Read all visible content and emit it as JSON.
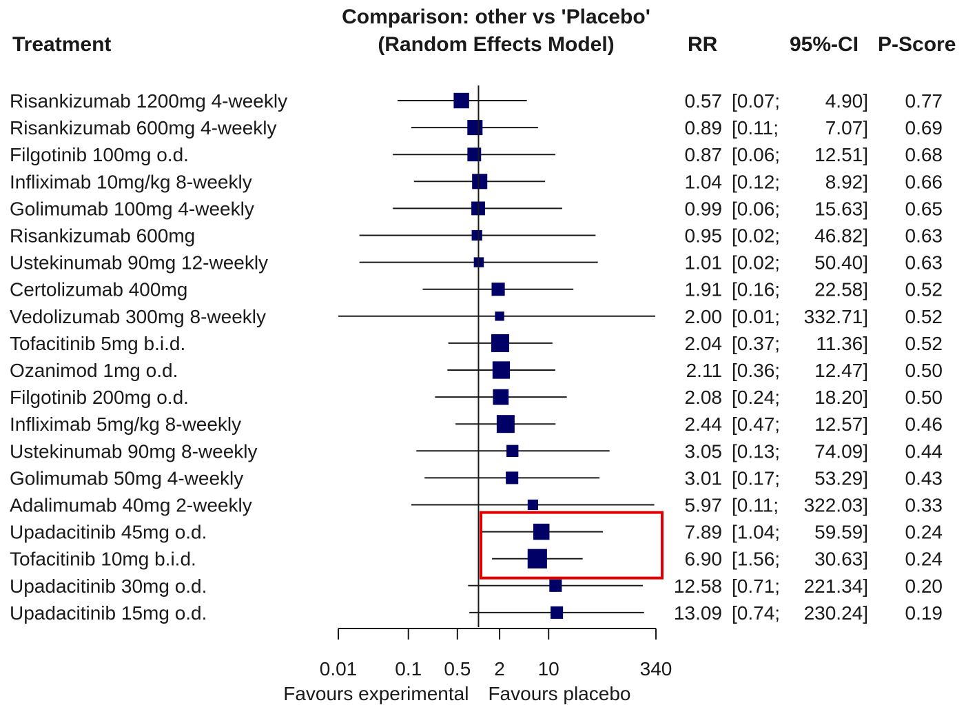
{
  "headers": {
    "treatment": "Treatment",
    "comparison_line1": "Comparison: other vs 'Placebo'",
    "comparison_line2": "(Random Effects Model)",
    "rr": "RR",
    "ci": "95%-CI",
    "pscore": "P-Score"
  },
  "colors": {
    "marker": "#000066",
    "line": "#1a1a1a",
    "highlight": "#e00000"
  },
  "chart_data": {
    "type": "forest",
    "xscale": "log",
    "xlim": [
      0.01,
      340
    ],
    "reference_line": 1,
    "ticks": [
      0.01,
      0.1,
      0.5,
      2,
      10,
      340
    ],
    "tick_labels": [
      "0.01",
      "0.1",
      "0.5",
      "2",
      "10",
      "340"
    ],
    "xlabel_left": "Favours experimental",
    "xlabel_right": "Favours placebo",
    "rows": [
      {
        "treatment": "Risankizumab 1200mg 4-weekly",
        "rr": 0.57,
        "lo": 0.07,
        "hi": 4.9,
        "rr_text": "0.57",
        "ci_lo_text": "[0.07;",
        "ci_hi_text": "4.90]",
        "pscore": "0.77",
        "weight": 0.8
      },
      {
        "treatment": "Risankizumab 600mg 4-weekly",
        "rr": 0.89,
        "lo": 0.11,
        "hi": 7.07,
        "rr_text": "0.89",
        "ci_lo_text": "[0.11;",
        "ci_hi_text": "7.07]",
        "pscore": "0.69",
        "weight": 0.78
      },
      {
        "treatment": "Filgotinib 100mg o.d.",
        "rr": 0.87,
        "lo": 0.06,
        "hi": 12.51,
        "rr_text": "0.87",
        "ci_lo_text": "[0.06;",
        "ci_hi_text": "12.51]",
        "pscore": "0.68",
        "weight": 0.66
      },
      {
        "treatment": "Infliximab 10mg/kg 8-weekly",
        "rr": 1.04,
        "lo": 0.12,
        "hi": 8.92,
        "rr_text": "1.04",
        "ci_lo_text": "[0.12;",
        "ci_hi_text": "8.92]",
        "pscore": "0.66",
        "weight": 0.78
      },
      {
        "treatment": "Golimumab 100mg 4-weekly",
        "rr": 0.99,
        "lo": 0.06,
        "hi": 15.63,
        "rr_text": "0.99",
        "ci_lo_text": "[0.06;",
        "ci_hi_text": "15.63]",
        "pscore": "0.65",
        "weight": 0.66
      },
      {
        "treatment": "Risankizumab 600mg",
        "rr": 0.95,
        "lo": 0.02,
        "hi": 46.82,
        "rr_text": "0.95",
        "ci_lo_text": "[0.02;",
        "ci_hi_text": "46.82]",
        "pscore": "0.63",
        "weight": 0.4
      },
      {
        "treatment": "Ustekinumab 90mg 12-weekly",
        "rr": 1.01,
        "lo": 0.02,
        "hi": 50.4,
        "rr_text": "1.01",
        "ci_lo_text": "[0.02;",
        "ci_hi_text": "50.40]",
        "pscore": "0.63",
        "weight": 0.36
      },
      {
        "treatment": "Certolizumab 400mg",
        "rr": 1.91,
        "lo": 0.16,
        "hi": 22.58,
        "rr_text": "1.91",
        "ci_lo_text": "[0.16;",
        "ci_hi_text": "22.58]",
        "pscore": "0.52",
        "weight": 0.62
      },
      {
        "treatment": "Vedolizumab 300mg 8-weekly",
        "rr": 2.0,
        "lo": 0.01,
        "hi": 332.71,
        "rr_text": "2.00",
        "ci_lo_text": "[0.01;",
        "ci_hi_text": "332.71]",
        "pscore": "0.52",
        "weight": 0.3
      },
      {
        "treatment": "Tofacitinib 5mg b.i.d.",
        "rr": 2.04,
        "lo": 0.37,
        "hi": 11.36,
        "rr_text": "2.04",
        "ci_lo_text": "[0.37;",
        "ci_hi_text": "11.36]",
        "pscore": "0.52",
        "weight": 1.0
      },
      {
        "treatment": "Ozanimod 1mg o.d.",
        "rr": 2.11,
        "lo": 0.36,
        "hi": 12.47,
        "rr_text": "2.11",
        "ci_lo_text": "[0.36;",
        "ci_hi_text": "12.47]",
        "pscore": "0.50",
        "weight": 0.96
      },
      {
        "treatment": "Filgotinib 200mg o.d.",
        "rr": 2.08,
        "lo": 0.24,
        "hi": 18.2,
        "rr_text": "2.08",
        "ci_lo_text": "[0.24;",
        "ci_hi_text": "18.20]",
        "pscore": "0.50",
        "weight": 0.82
      },
      {
        "treatment": "Infliximab 5mg/kg 8-weekly",
        "rr": 2.44,
        "lo": 0.47,
        "hi": 12.57,
        "rr_text": "2.44",
        "ci_lo_text": "[0.47;",
        "ci_hi_text": "12.57]",
        "pscore": "0.46",
        "weight": 1.0
      },
      {
        "treatment": "Ustekinumab 90mg 8-weekly",
        "rr": 3.05,
        "lo": 0.13,
        "hi": 74.09,
        "rr_text": "3.05",
        "ci_lo_text": "[0.13;",
        "ci_hi_text": "74.09]",
        "pscore": "0.44",
        "weight": 0.52
      },
      {
        "treatment": "Golimumab 50mg 4-weekly",
        "rr": 3.01,
        "lo": 0.17,
        "hi": 53.29,
        "rr_text": "3.01",
        "ci_lo_text": "[0.17;",
        "ci_hi_text": "53.29]",
        "pscore": "0.43",
        "weight": 0.56
      },
      {
        "treatment": "Adalimumab 40mg 2-weekly",
        "rr": 5.97,
        "lo": 0.11,
        "hi": 322.03,
        "rr_text": "5.97",
        "ci_lo_text": "[0.11;",
        "ci_hi_text": "322.03]",
        "pscore": "0.33",
        "weight": 0.4
      },
      {
        "treatment": "Upadacitinib 45mg o.d.",
        "rr": 7.89,
        "lo": 1.04,
        "hi": 59.59,
        "rr_text": "7.89",
        "ci_lo_text": "[1.04;",
        "ci_hi_text": "59.59]",
        "pscore": "0.24",
        "weight": 0.86
      },
      {
        "treatment": "Tofacitinib 10mg b.i.d.",
        "rr": 6.9,
        "lo": 1.56,
        "hi": 30.63,
        "rr_text": "6.90",
        "ci_lo_text": "[1.56;",
        "ci_hi_text": "30.63]",
        "pscore": "0.24",
        "weight": 1.12
      },
      {
        "treatment": "Upadacitinib 30mg o.d.",
        "rr": 12.58,
        "lo": 0.71,
        "hi": 221.34,
        "rr_text": "12.58",
        "ci_lo_text": "[0.71;",
        "ci_hi_text": "221.34]",
        "pscore": "0.20",
        "weight": 0.56
      },
      {
        "treatment": "Upadacitinib 15mg o.d.",
        "rr": 13.09,
        "lo": 0.74,
        "hi": 230.24,
        "rr_text": "13.09",
        "ci_lo_text": "[0.74;",
        "ci_hi_text": "230.24]",
        "pscore": "0.19",
        "weight": 0.56
      }
    ],
    "highlight_rows": [
      16,
      17
    ]
  }
}
